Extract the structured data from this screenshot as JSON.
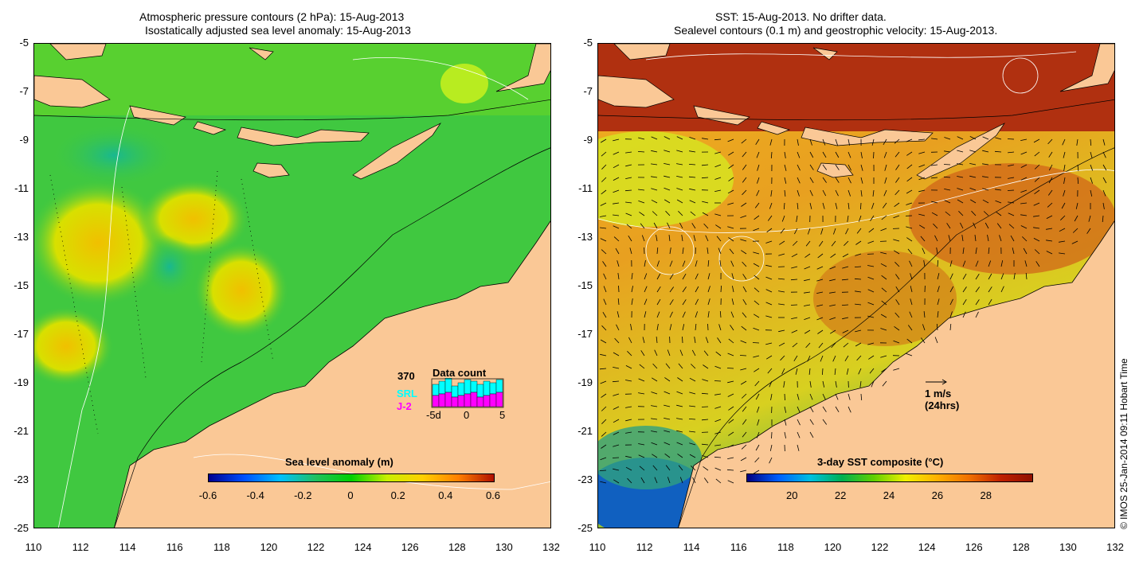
{
  "left_panel": {
    "title_line1": "Atmospheric pressure contours (2 hPa): 15-Aug-2013",
    "title_line2": "Isostatically adjusted sea level anomaly: 15-Aug-2013",
    "colorbar_title": "Sea level anomaly (m)",
    "colorbar_ticks": [
      "-0.6",
      "-0.4",
      "-0.2",
      "0",
      "0.2",
      "0.4",
      "0.6"
    ],
    "colorbar_colors": [
      "#00008f",
      "#0050ff",
      "#00c0ff",
      "#20c060",
      "#00d000",
      "#c8f000",
      "#ffd000",
      "#ff8000",
      "#b01000"
    ],
    "inset": {
      "max_label": "370",
      "title": "Data count",
      "series1": "SRL",
      "series2": "J-2",
      "series1_color": "#00ffff",
      "series2_color": "#ff00ff",
      "x_ticks": [
        "-5d",
        "0",
        "5"
      ]
    }
  },
  "right_panel": {
    "title_line1": "SST: 15-Aug-2013. No drifter data.",
    "title_line2": "Sealevel contours (0.1 m) and geostrophic velocity: 15-Aug-2013.",
    "colorbar_title": "3-day SST composite (°C)",
    "colorbar_ticks": [
      "20",
      "22",
      "24",
      "26",
      "28"
    ],
    "colorbar_colors": [
      "#000080",
      "#0060ff",
      "#00c0e0",
      "#00b050",
      "#60d000",
      "#f0f000",
      "#ffb000",
      "#f07000",
      "#c02000",
      "#901000"
    ],
    "scale_arrow_label": "1 m/s",
    "scale_arrow_sublabel": "(24hrs)"
  },
  "axes": {
    "y_ticks": [
      "-5",
      "-7",
      "-9",
      "-11",
      "-13",
      "-15",
      "-17",
      "-19",
      "-21",
      "-23",
      "-25"
    ],
    "x_ticks": [
      "110",
      "112",
      "114",
      "116",
      "118",
      "120",
      "122",
      "124",
      "126",
      "128",
      "130",
      "132"
    ]
  },
  "colors": {
    "land": "#fac896",
    "ocean_left": "#3cc83c",
    "ocean_right": "#e89a28"
  },
  "credit": "© IMOS 25-Jan-2014 09:11 Hobart Time"
}
